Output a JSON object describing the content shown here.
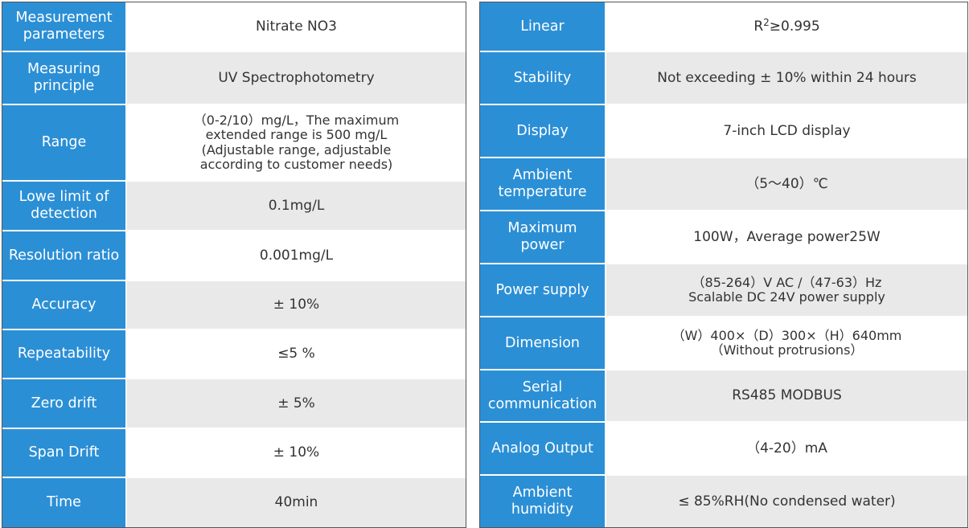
{
  "left_table": [
    {
      "label": "Measurement parameters",
      "value": [
        "Nitrate NO3"
      ]
    },
    {
      "label": "Measuring principle",
      "value": [
        "UV Spectrophotometry"
      ]
    },
    {
      "label": "Range",
      "value": [
        "（0-2/10）mg/L，The maximum",
        "extended range is 500 mg/L",
        "(Adjustable range, adjustable",
        "according to customer needs)"
      ]
    },
    {
      "label": "Lowe limit of detection",
      "value": [
        "0.1mg/L"
      ]
    },
    {
      "label": "Resolution ratio",
      "value": [
        "0.001mg/L"
      ]
    },
    {
      "label": "Accuracy",
      "value": [
        "± 10%"
      ]
    },
    {
      "label": "Repeatability",
      "value": [
        "≤5 %"
      ]
    },
    {
      "label": "Zero drift",
      "value": [
        "± 5%"
      ]
    },
    {
      "label": "Span Drift",
      "value": [
        "± 10%"
      ]
    },
    {
      "label": "Time",
      "value": [
        "40min"
      ]
    }
  ],
  "right_table": [
    {
      "label": "Linear",
      "value": [
        "R",
        "2",
        "≥0.995"
      ]
    },
    {
      "label": "Stability",
      "value": [
        "Not exceeding ± 10% within 24 hours"
      ]
    },
    {
      "label": "Display",
      "value": [
        "7-inch LCD display"
      ]
    },
    {
      "label": "Ambient temperature",
      "value": [
        "（5～40）℃"
      ]
    },
    {
      "label": "Maximum power",
      "value": [
        "100W，Average power25W"
      ]
    },
    {
      "label": "Power supply",
      "value": [
        "（85-264）V AC /（47-63）Hz",
        "Scalable DC 24V power supply"
      ]
    },
    {
      "label": "Dimension",
      "value": [
        "（W）400×（D）300×（H）640mm",
        "（Without protrusions）"
      ]
    },
    {
      "label": "Serial communication",
      "value": [
        "RS485 MODBUS"
      ]
    },
    {
      "label": "Analog Output",
      "value": [
        "（4-20）mA"
      ]
    },
    {
      "label": "Ambient humidity",
      "value": [
        "≤ 85%RH(No condensed water)"
      ]
    }
  ],
  "colors": {
    "label_bg": "#2b8fd6",
    "label_text": "#ffffff",
    "alt_row_bg": "#e9e9e9",
    "value_text": "#333333"
  }
}
